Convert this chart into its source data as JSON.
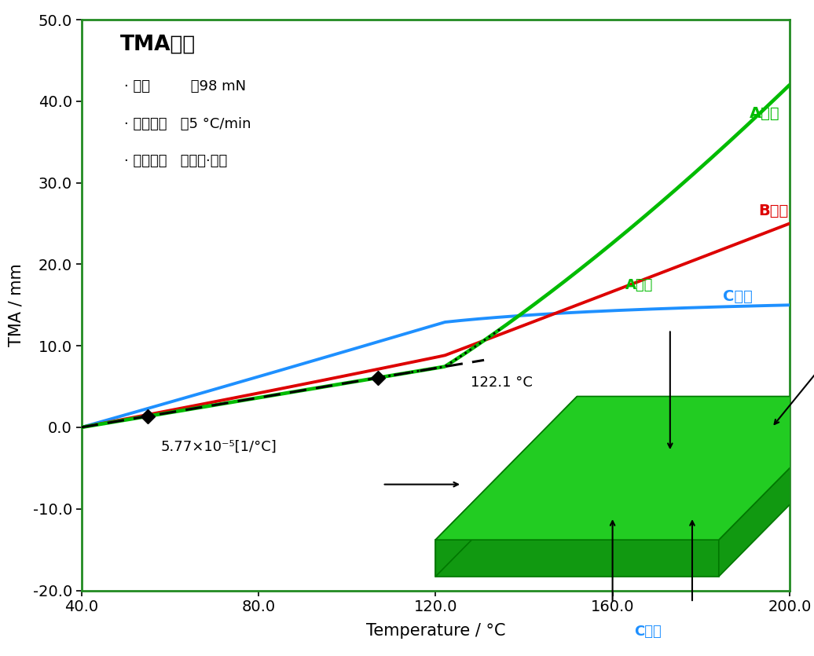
{
  "title": "TMA测定",
  "info_line1": "· 载荷         ：98 mN",
  "info_line2": "· 升温速率   ：5 °C/min",
  "info_line3": "· 测定模式   ：膨胀·压缩",
  "xlabel": "Temperature / °C",
  "ylabel": "TMA / mm",
  "xlim": [
    40.0,
    200.0
  ],
  "ylim": [
    -20.0,
    50.0
  ],
  "xticks": [
    40.0,
    80.0,
    120.0,
    160.0,
    200.0
  ],
  "yticks": [
    -20.0,
    -10.0,
    0.0,
    10.0,
    20.0,
    30.0,
    40.0,
    50.0
  ],
  "bg_color": "#ffffff",
  "spine_color": "#228B22",
  "A_color": "#00bb00",
  "B_color": "#dd0000",
  "C_color": "#1e90ff",
  "label_A": "A方向",
  "label_B": "B方向",
  "label_C": "C方向",
  "annotation_temp": "122.1 °C",
  "annotation_cte": "5.77×10⁻⁵[1/°C]",
  "Tg": 122.1,
  "marker1_x": 55.0,
  "marker2_x": 107.0,
  "pcb_green_top": "#22cc22",
  "pcb_green_side": "#119911",
  "pcb_green_edge": "#007700"
}
